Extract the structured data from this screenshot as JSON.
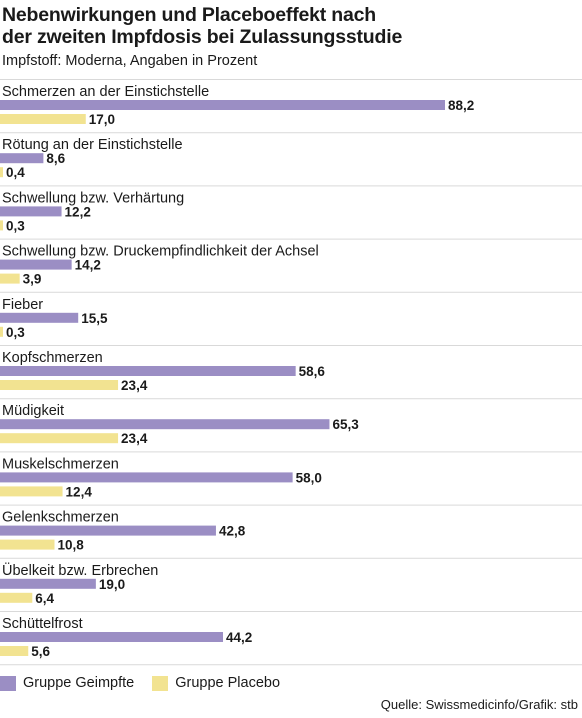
{
  "header": {
    "title_line1": "Nebenwirkungen und Placeboeffekt nach",
    "title_line2": "der zweiten Impfdosis bei Zulassungsstudie",
    "subtitle": "Impfstoff: Moderna, Angaben in Prozent"
  },
  "colors": {
    "vaccinated": "#9b8ec4",
    "placebo": "#f2e391",
    "divider": "#d9d9d9",
    "text": "#1a1a1a"
  },
  "chart_data": {
    "type": "bar",
    "orientation": "horizontal",
    "categories": [
      "Schmerzen an der Einstichstelle",
      "Rötung an der Einstichstelle",
      "Schwellung bzw. Verhärtung",
      "Schwellung bzw. Druckempfindlichkeit der Achsel",
      "Fieber",
      "Kopfschmerzen",
      "Müdigkeit",
      "Muskelschmerzen",
      "Gelenkschmerzen",
      "Übelkeit bzw. Erbrechen",
      "Schüttelfrost"
    ],
    "series": [
      {
        "name": "Gruppe Geimpfte",
        "values": [
          88.2,
          8.6,
          12.2,
          14.2,
          15.5,
          58.6,
          65.3,
          58.0,
          42.8,
          19.0,
          44.2
        ],
        "labels": [
          "88,2",
          "8,6",
          "12,2",
          "14,2",
          "15,5",
          "58,6",
          "65,3",
          "58,0",
          "42,8",
          "19,0",
          "44,2"
        ]
      },
      {
        "name": "Gruppe Placebo",
        "values": [
          17.0,
          0.4,
          0.3,
          3.9,
          0.3,
          23.4,
          23.4,
          12.4,
          10.8,
          6.4,
          5.6
        ],
        "labels": [
          "17,0",
          "0,4",
          "0,3",
          "3,9",
          "0,3",
          "23,4",
          "23,4",
          "12,4",
          "10,8",
          "6,4",
          "5,6"
        ]
      }
    ],
    "xlim": [
      0,
      100
    ],
    "grid": false,
    "legend_position": "bottom-left"
  },
  "legend": {
    "vaccinated_label": "Gruppe Geimpfte",
    "placebo_label": "Gruppe Placebo"
  },
  "source": "Quelle: Swissmedicinfo/Grafik: stb"
}
